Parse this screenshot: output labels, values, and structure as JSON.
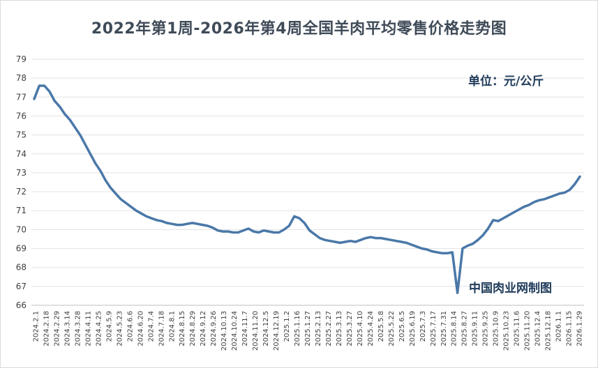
{
  "chart_data": {
    "type": "line",
    "title": "2022年第1周-2026年第4周全国羊肉平均零售价格走势图",
    "unit_label": "单位：元/公斤",
    "source_label": "中国肉业网制图",
    "ylim": [
      66,
      79
    ],
    "yticks": [
      66,
      67,
      68,
      69,
      70,
      71,
      72,
      73,
      74,
      75,
      76,
      77,
      78,
      79
    ],
    "grid": true,
    "line_color": "#4a78a8",
    "xticks": [
      "2024.2.1",
      "2024.2.18",
      "2024.2.29",
      "2024.3.14",
      "2024.3.28",
      "2024.4.11",
      "2024.4.25",
      "2024.5.9",
      "2024.5.23",
      "2024.6.6",
      "2024.6.20",
      "2024.7.4",
      "2024.7.18",
      "2024.8.1",
      "2024.8.15",
      "2024.8.29",
      "2024.9.12",
      "2024.9.26",
      "2024.10.13",
      "2024.10.24",
      "2024.11.7",
      "2024.11.20",
      "2024.12.5",
      "2024.12.19",
      "2025.1.2",
      "2025.1.16",
      "2025.1.27",
      "2025.2.13",
      "2025.2.27",
      "2025.3.13",
      "2025.3.27",
      "2025.4.10",
      "2025.4.24",
      "2025.5.8",
      "2025.5.22",
      "2025.6.5",
      "2025.6.19",
      "2025.7.3",
      "2025.7.17",
      "2025.7.31",
      "2025.8.14",
      "2025.8.27",
      "2025.9.11",
      "2025.9.25",
      "2025.10.9",
      "2025.10.23",
      "2025.11.6",
      "2025.11.20",
      "2025.12.4",
      "2025.12.18",
      "2026.1.1",
      "2026.1.15",
      "2026.1.29"
    ],
    "series": [
      {
        "values": [
          76.9,
          77.6,
          77.6,
          77.3,
          76.8,
          76.5,
          76.1,
          75.8,
          75.4,
          75.0,
          74.5,
          74.0,
          73.5,
          73.1,
          72.6,
          72.2,
          71.9,
          71.6,
          71.4,
          71.2,
          71.0,
          70.85,
          70.7,
          70.6,
          70.5,
          70.45,
          70.35,
          70.3,
          70.25,
          70.25,
          70.3,
          70.35,
          70.3,
          70.25,
          70.2,
          70.1,
          69.95,
          69.9,
          69.9,
          69.85,
          69.85,
          69.95,
          70.05,
          69.9,
          69.85,
          69.95,
          69.9,
          69.85,
          69.85,
          70.0,
          70.2,
          70.7,
          70.6,
          70.35,
          69.95,
          69.75,
          69.55,
          69.45,
          69.4,
          69.35,
          69.3,
          69.35,
          69.4,
          69.35,
          69.45,
          69.55,
          69.6,
          69.55,
          69.55,
          69.5,
          69.45,
          69.4,
          69.35,
          69.3,
          69.2,
          69.1,
          69.0,
          68.95,
          68.85,
          68.8,
          68.75,
          68.75,
          68.8,
          66.65,
          69.0,
          69.15,
          69.25,
          69.45,
          69.7,
          70.05,
          70.5,
          70.45,
          70.6,
          70.75,
          70.9,
          71.05,
          71.2,
          71.3,
          71.45,
          71.55,
          71.6,
          71.7,
          71.8,
          71.9,
          71.95,
          72.1,
          72.4,
          72.8
        ]
      }
    ]
  }
}
